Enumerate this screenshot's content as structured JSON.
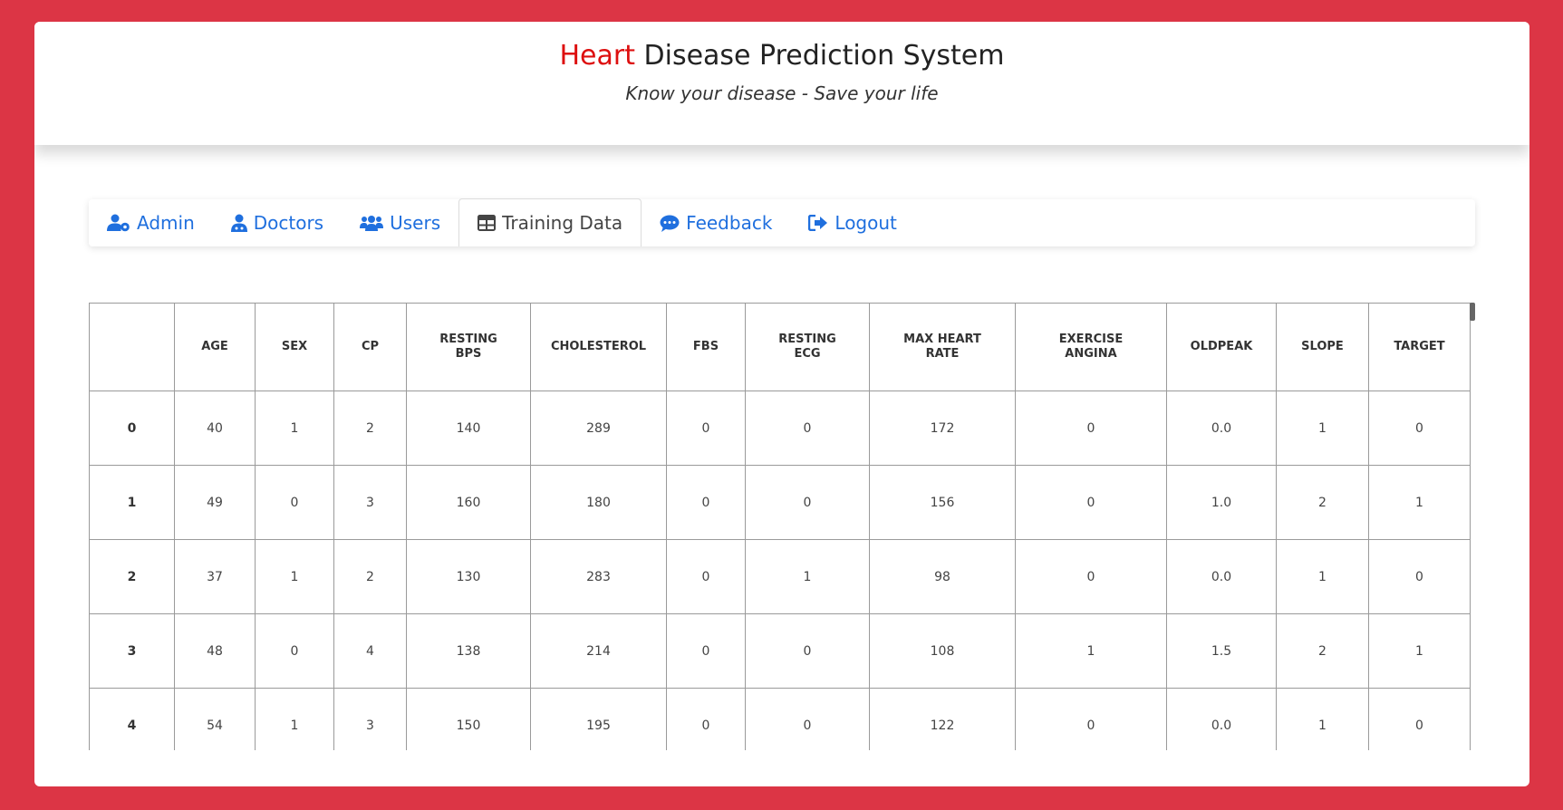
{
  "header": {
    "title_accent": "Heart",
    "title_rest": " Disease Prediction System",
    "subtitle": "Know your disease - Save your life"
  },
  "nav": {
    "tabs": [
      {
        "label": "Admin",
        "icon": "user-gear-icon"
      },
      {
        "label": "Doctors",
        "icon": "user-doctor-icon"
      },
      {
        "label": "Users",
        "icon": "users-icon"
      },
      {
        "label": "Training Data",
        "icon": "table-icon",
        "active": true
      },
      {
        "label": "Feedback",
        "icon": "comment-dots-icon"
      },
      {
        "label": "Logout",
        "icon": "sign-out-icon"
      }
    ]
  },
  "table": {
    "columns": [
      "",
      "AGE",
      "SEX",
      "CP",
      "RESTING BPS",
      "CHOLESTEROL",
      "FBS",
      "RESTING ECG",
      "MAX HEART RATE",
      "EXERCISE ANGINA",
      "OLDPEAK",
      "SLOPE",
      "TARGET"
    ],
    "rows": [
      [
        "0",
        "40",
        "1",
        "2",
        "140",
        "289",
        "0",
        "0",
        "172",
        "0",
        "0.0",
        "1",
        "0"
      ],
      [
        "1",
        "49",
        "0",
        "3",
        "160",
        "180",
        "0",
        "0",
        "156",
        "0",
        "1.0",
        "2",
        "1"
      ],
      [
        "2",
        "37",
        "1",
        "2",
        "130",
        "283",
        "0",
        "1",
        "98",
        "0",
        "0.0",
        "1",
        "0"
      ],
      [
        "3",
        "48",
        "0",
        "4",
        "138",
        "214",
        "0",
        "0",
        "108",
        "1",
        "1.5",
        "2",
        "1"
      ],
      [
        "4",
        "54",
        "1",
        "3",
        "150",
        "195",
        "0",
        "0",
        "122",
        "0",
        "0.0",
        "1",
        "0"
      ]
    ]
  },
  "colors": {
    "background": "#dc3545",
    "accent_red": "#dd0f0f",
    "link_blue": "#1f6fde"
  }
}
